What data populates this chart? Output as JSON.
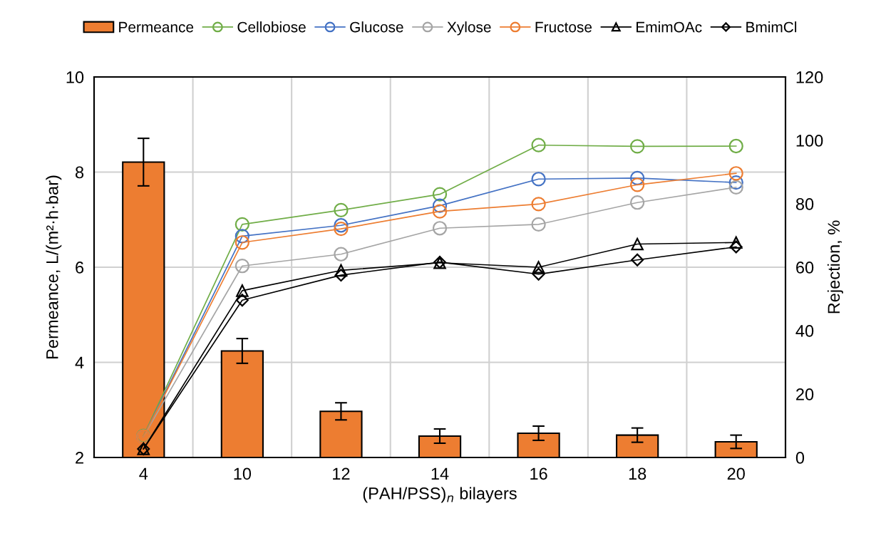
{
  "chart_data": {
    "type": "bar",
    "xlabel": "(PAH/PSS)$_{n}$ bilayers",
    "ylabel": "Permeance, L/(m²·h·bar)",
    "y2label": "Rejection, %",
    "categories": [
      "4",
      "10",
      "12",
      "14",
      "16",
      "18",
      "20"
    ],
    "ylim": [
      2,
      10
    ],
    "yticks": [
      2,
      4,
      6,
      8,
      10
    ],
    "y2lim": [
      0,
      120
    ],
    "y2ticks": [
      0,
      20,
      40,
      60,
      80,
      100,
      120
    ],
    "grid": true,
    "legend": "top",
    "line_style": "solid",
    "series": [
      {
        "name": "Permeance",
        "color": "#ed7d31",
        "values": [
          8.21,
          4.24,
          2.97,
          2.45,
          2.51,
          2.47,
          2.33
        ],
        "errors": [
          0.5,
          0.26,
          0.18,
          0.15,
          0.15,
          0.15,
          0.14
        ]
      },
      {
        "name": "Cellobiose",
        "type": "line",
        "axis": "y2",
        "marker": "circle",
        "color": "#70ad47",
        "values": [
          6.8,
          73.5,
          78.0,
          83.0,
          98.5,
          98.1,
          98.2
        ]
      },
      {
        "name": "Glucose",
        "type": "line",
        "axis": "y2",
        "marker": "circle",
        "color": "#4472c4",
        "values": [
          6.6,
          69.8,
          73.2,
          79.4,
          87.8,
          88.1,
          86.7
        ]
      },
      {
        "name": "Xylose",
        "type": "line",
        "axis": "y2",
        "marker": "circle",
        "color": "#a5a5a5",
        "values": [
          6.6,
          60.4,
          64.1,
          72.3,
          73.5,
          80.4,
          85.2
        ]
      },
      {
        "name": "Fructose",
        "type": "line",
        "axis": "y2",
        "marker": "circle",
        "color": "#ed7d31",
        "values": [
          6.6,
          67.8,
          72.1,
          77.6,
          79.9,
          86.0,
          89.6
        ]
      },
      {
        "name": "EmimOAc",
        "type": "line",
        "axis": "y2",
        "marker": "triangle",
        "color": "#000000",
        "values": [
          2.7,
          52.6,
          59.0,
          61.4,
          60.0,
          67.3,
          67.8
        ]
      },
      {
        "name": "BmimCl",
        "type": "line",
        "axis": "y2",
        "marker": "diamond",
        "color": "#000000",
        "values": [
          2.7,
          49.6,
          57.5,
          61.6,
          57.8,
          62.3,
          66.4
        ]
      }
    ]
  }
}
